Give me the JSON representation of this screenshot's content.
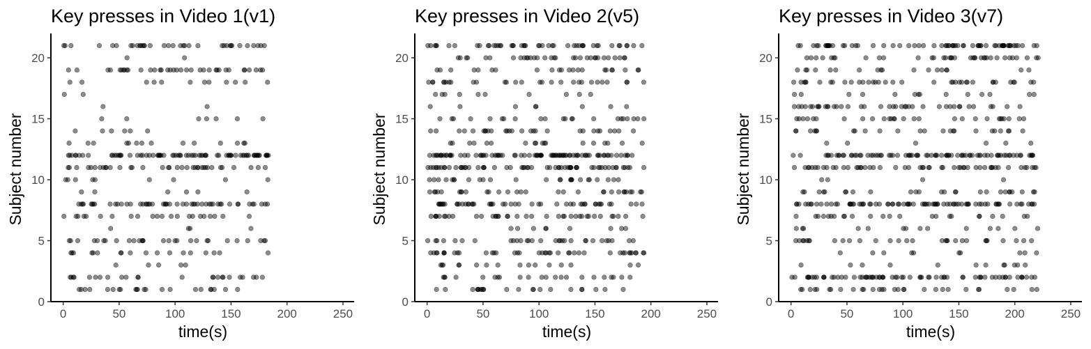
{
  "chart_data": [
    {
      "type": "scatter",
      "title": "Key presses in Video 1(v1)",
      "xlabel": "time(s)",
      "ylabel": "Subject number",
      "xlim": [
        -11,
        260
      ],
      "ylim": [
        0,
        22
      ],
      "x_ticks": [
        0,
        50,
        100,
        150,
        200,
        250
      ],
      "y_ticks": [
        0,
        5,
        10,
        15,
        20
      ],
      "x_tick_labels": [
        "0",
        "50",
        "100",
        "150",
        "200",
        "250"
      ],
      "y_tick_labels": [
        "0",
        "5",
        "10",
        "15",
        "20"
      ],
      "grid": false,
      "point_color": "#000000",
      "point_alpha": 0.45,
      "max_time": 184,
      "seed": 11,
      "rows": {
        "1": 22,
        "2": 24,
        "3": 5,
        "4": 18,
        "5": 28,
        "6": 4,
        "7": 22,
        "8": 50,
        "9": 6,
        "10": 9,
        "11": 36,
        "12": 75,
        "13": 14,
        "14": 6,
        "15": 7,
        "16": 2,
        "17": 2,
        "18": 12,
        "19": 36,
        "20": 2,
        "21": 35
      }
    },
    {
      "type": "scatter",
      "title": "Key presses in Video 2(v5)",
      "xlabel": "time(s)",
      "ylabel": "Subject number",
      "xlim": [
        -11,
        260
      ],
      "ylim": [
        0,
        22
      ],
      "x_ticks": [
        0,
        50,
        100,
        150,
        200,
        250
      ],
      "y_ticks": [
        0,
        5,
        10,
        15,
        20
      ],
      "x_tick_labels": [
        "0",
        "50",
        "100",
        "150",
        "200",
        "250"
      ],
      "y_tick_labels": [
        "0",
        "5",
        "10",
        "15",
        "20"
      ],
      "grid": false,
      "point_color": "#000000",
      "point_alpha": 0.45,
      "max_time": 194,
      "seed": 23,
      "rows": {
        "1": 22,
        "2": 22,
        "3": 16,
        "4": 40,
        "5": 30,
        "6": 9,
        "7": 38,
        "8": 48,
        "9": 30,
        "10": 26,
        "11": 60,
        "12": 84,
        "13": 18,
        "14": 28,
        "15": 22,
        "16": 8,
        "17": 10,
        "18": 28,
        "19": 22,
        "20": 32,
        "21": 46
      }
    },
    {
      "type": "scatter",
      "title": "Key presses in Video 3(v7)",
      "xlabel": "time(s)",
      "ylabel": "Subject number",
      "xlim": [
        -11,
        260
      ],
      "ylim": [
        0,
        22
      ],
      "x_ticks": [
        0,
        50,
        100,
        150,
        200,
        250
      ],
      "y_ticks": [
        0,
        5,
        10,
        15,
        20
      ],
      "x_tick_labels": [
        "0",
        "50",
        "100",
        "150",
        "200",
        "250"
      ],
      "y_tick_labels": [
        "0",
        "5",
        "10",
        "15",
        "20"
      ],
      "grid": false,
      "point_color": "#000000",
      "point_alpha": 0.45,
      "max_time": 221,
      "seed": 37,
      "rows": {
        "1": 30,
        "2": 70,
        "3": 12,
        "4": 10,
        "5": 30,
        "6": 14,
        "7": 24,
        "8": 80,
        "9": 26,
        "10": 4,
        "11": 52,
        "12": 80,
        "13": 6,
        "14": 24,
        "15": 28,
        "16": 40,
        "17": 14,
        "18": 36,
        "19": 18,
        "20": 36,
        "21": 66
      }
    }
  ]
}
